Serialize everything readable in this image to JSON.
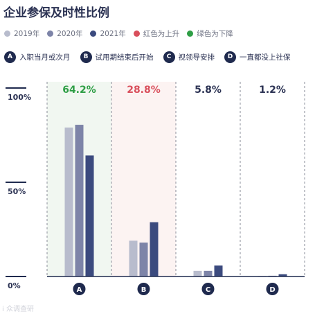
{
  "title": "企业参保及时性比例",
  "legend_years": [
    {
      "label": "2019年",
      "color": "#b8bccd"
    },
    {
      "label": "2020年",
      "color": "#7d84a8"
    },
    {
      "label": "2021年",
      "color": "#3b4a7e"
    }
  ],
  "legend_colors": [
    {
      "label": "红色为上升",
      "color": "#d94f5c"
    },
    {
      "label": "绿色为下降",
      "color": "#2e9e45"
    }
  ],
  "categories_legend": [
    {
      "key": "A",
      "label": "入职当月或次月"
    },
    {
      "key": "B",
      "label": "试用期结束后开始"
    },
    {
      "key": "C",
      "label": "视领导安排"
    },
    {
      "key": "D",
      "label": "一直都没上社保"
    }
  ],
  "watermark": "i 众调查研",
  "chart_data": {
    "type": "bar",
    "title": "企业参保及时性比例",
    "categories": [
      "A",
      "B",
      "C",
      "D"
    ],
    "series": [
      {
        "name": "2019年",
        "color": "#b8bccd",
        "values": [
          79,
          19,
          3,
          0.3
        ]
      },
      {
        "name": "2020年",
        "color": "#7d84a8",
        "values": [
          80.5,
          18,
          3,
          0.4
        ]
      },
      {
        "name": "2021年",
        "color": "#3b4a7e",
        "values": [
          64.2,
          28.8,
          5.8,
          1.2
        ]
      }
    ],
    "top_labels": [
      {
        "text": "64.2%",
        "color": "#2e9e45",
        "shade": "#f1f7f1"
      },
      {
        "text": "28.8%",
        "color": "#d94f5c",
        "shade": "#fcf3f2"
      },
      {
        "text": "5.8%",
        "color": "#2b3253",
        "shade": ""
      },
      {
        "text": "1.2%",
        "color": "#2b3253",
        "shade": ""
      }
    ],
    "yticks": [
      {
        "value": 0,
        "label": "0%"
      },
      {
        "value": 50,
        "label": "50%"
      },
      {
        "value": 100,
        "label": "100%"
      }
    ],
    "ylim": [
      0,
      100
    ],
    "grid": false
  }
}
